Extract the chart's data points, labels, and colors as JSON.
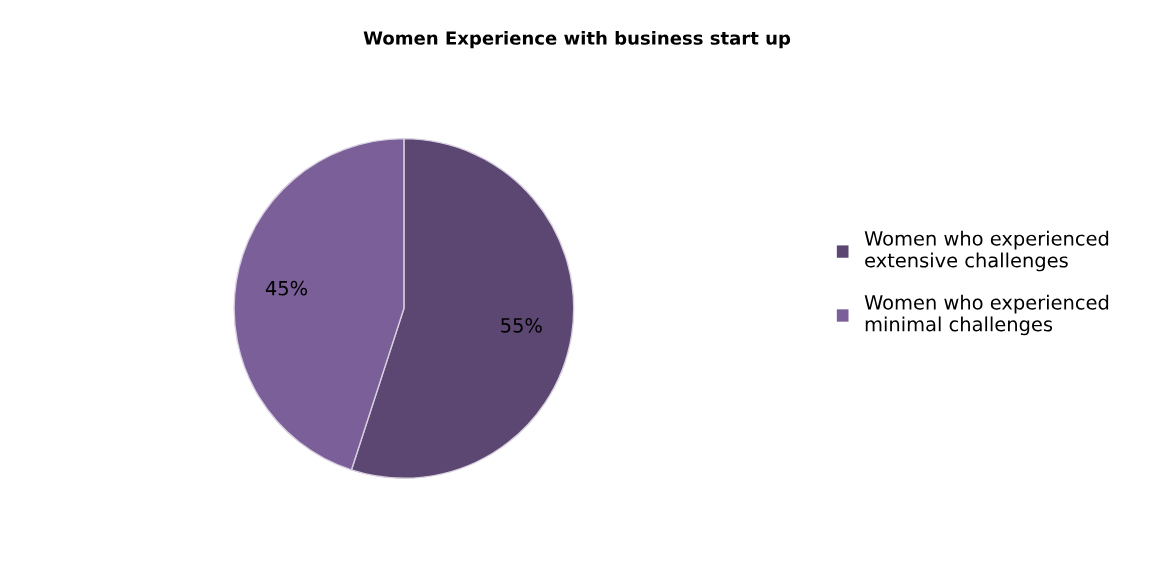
{
  "chart_data": {
    "type": "pie",
    "title": "Women Experience with business start up",
    "categories": [
      "Women who experienced extensive challenges",
      "Women who experienced minimal challenges"
    ],
    "values": [
      55,
      45
    ],
    "value_labels": [
      "55%",
      "45%"
    ],
    "colors": [
      "#5c4772",
      "#7b5f99"
    ],
    "legend": "right"
  }
}
